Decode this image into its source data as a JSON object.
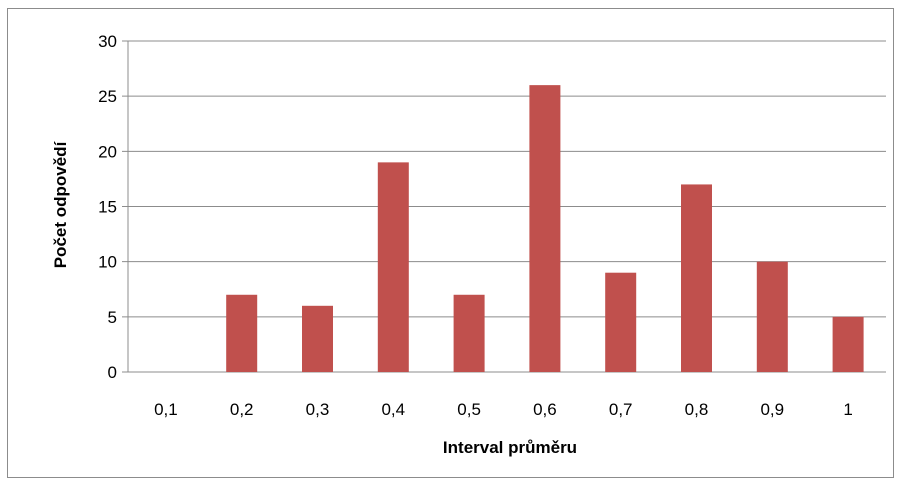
{
  "chart_data": {
    "type": "bar",
    "title": "",
    "xlabel": "Interval průměru",
    "ylabel": "Počet odpovědí",
    "categories": [
      "0,1",
      "0,2",
      "0,3",
      "0,4",
      "0,5",
      "0,6",
      "0,7",
      "0,8",
      "0,9",
      "1"
    ],
    "values": [
      0,
      7,
      6,
      19,
      7,
      26,
      9,
      17,
      10,
      5
    ],
    "ylim": [
      0,
      30
    ],
    "yticks": [
      0,
      5,
      10,
      15,
      20,
      25,
      30
    ],
    "grid": true,
    "legend": "none",
    "bar_color": "#c0504d",
    "gridline_color": "#8c8c8c"
  }
}
